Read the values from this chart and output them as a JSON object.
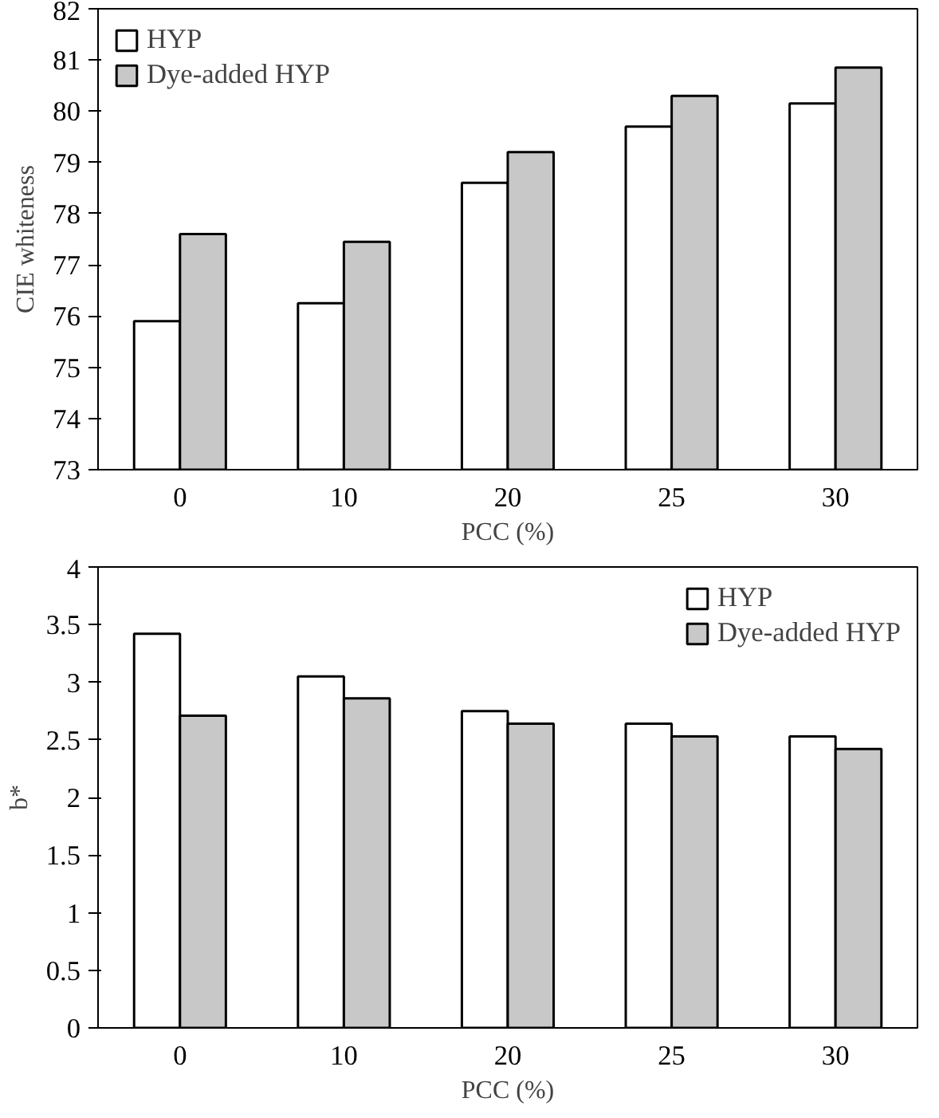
{
  "chart_data": [
    {
      "type": "bar",
      "categories": [
        "0",
        "10",
        "20",
        "25",
        "30"
      ],
      "xlabel": "PCC (%)",
      "ylabel": "CIE whiteness",
      "ylim": [
        73,
        82
      ],
      "yticks": [
        73,
        74,
        75,
        76,
        77,
        78,
        79,
        80,
        81,
        82
      ],
      "legend": "top left",
      "series": [
        {
          "name": "HYP",
          "color": "#ffffff",
          "values": [
            75.9,
            76.25,
            78.6,
            79.7,
            80.15
          ]
        },
        {
          "name": "Dye-added HYP",
          "color": "#c8c8c8",
          "values": [
            77.6,
            77.45,
            79.2,
            80.3,
            80.85
          ]
        }
      ]
    },
    {
      "type": "bar",
      "categories": [
        "0",
        "10",
        "20",
        "25",
        "30"
      ],
      "xlabel": "PCC (%)",
      "ylabel": "b*",
      "ylim": [
        0,
        4
      ],
      "yticks": [
        0,
        0.5,
        1,
        1.5,
        2,
        2.5,
        3,
        3.5,
        4
      ],
      "legend": "top right",
      "series": [
        {
          "name": "HYP",
          "color": "#ffffff",
          "values": [
            3.42,
            3.05,
            2.75,
            2.64,
            2.53
          ]
        },
        {
          "name": "Dye-added HYP",
          "color": "#c8c8c8",
          "values": [
            2.71,
            2.86,
            2.64,
            2.53,
            2.42
          ]
        }
      ]
    }
  ]
}
